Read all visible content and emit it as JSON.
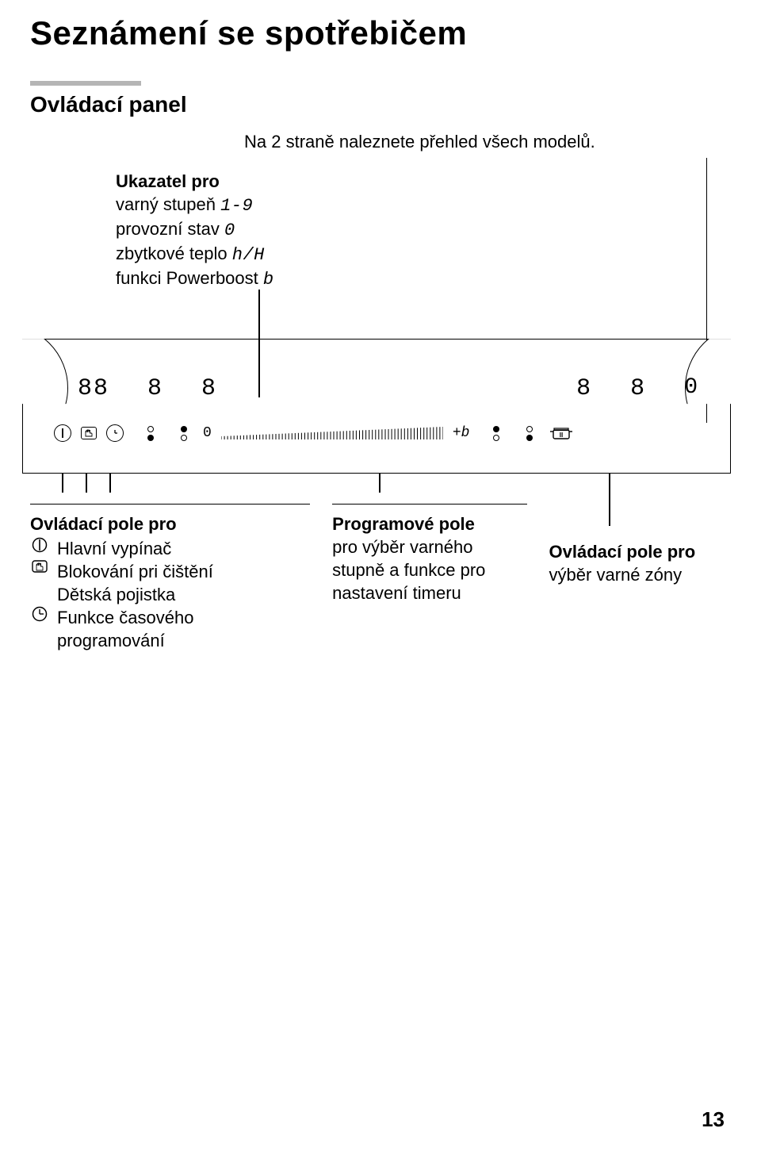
{
  "title": "Seznámení se spotřebičem",
  "section_title": "Ovládací panel",
  "intro": "Na 2 straně naleznete přehled všech modelů.",
  "indicator": {
    "lead": "Ukazatel pro",
    "rows": [
      {
        "label": "varný stupeň",
        "glyph": "1-9"
      },
      {
        "label": "provozní stav",
        "glyph": "0"
      },
      {
        "label": "zbytkové teplo",
        "glyph": "h/H"
      },
      {
        "label": "funkci Powerboost",
        "glyph": "b"
      }
    ]
  },
  "panel": {
    "seg_displays": [
      "88",
      "8",
      "8",
      "8",
      "8",
      "0"
    ],
    "slider_zero": "0",
    "plus_b": "+b",
    "icons": {
      "power": "I",
      "hand": "✋",
      "clock": "◷",
      "pot": "pot"
    }
  },
  "callouts": {
    "left": {
      "head": "Ovládací pole pro",
      "items": [
        {
          "sym": "power",
          "text": "Hlavní vypínač"
        },
        {
          "sym": "hand",
          "text": "Blokování pri čištění\nDětská pojistka"
        },
        {
          "sym": "clock",
          "text": "Funkce časového\nprogramování"
        }
      ]
    },
    "center": {
      "l1": "Programové pole",
      "l2": "pro výběr varného\nstupně a funkce pro\nnastavení timeru"
    },
    "right": {
      "l1": "Ovládací pole pro",
      "l2": "výběr varné zóny"
    }
  },
  "page_number": "13",
  "colors": {
    "text": "#000000",
    "rule": "#b5b5b5",
    "bg": "#ffffff"
  }
}
